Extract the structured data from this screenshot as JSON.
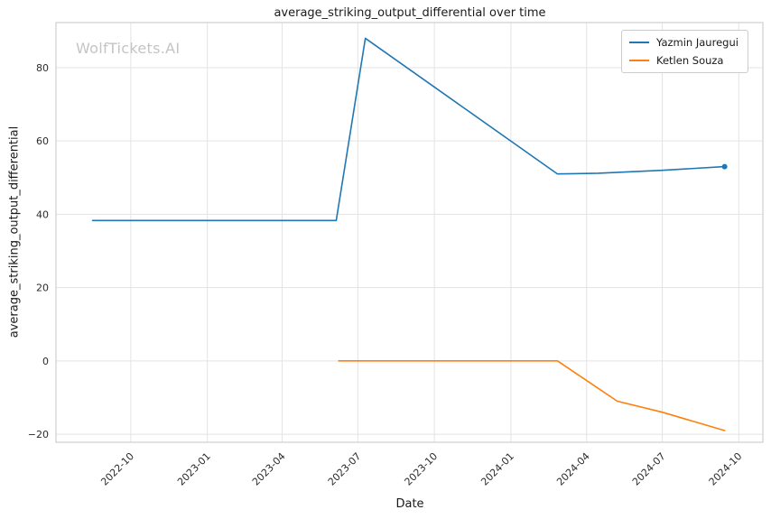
{
  "watermark": "WolfTickets.AI",
  "chart_data": {
    "type": "line",
    "title": "average_striking_output_differential over time",
    "xlabel": "Date",
    "ylabel": "average_striking_output_differential",
    "grid": true,
    "grid_color": "#e3e3e3",
    "spine_color": "#cfcfcf",
    "legend_position": "upper right",
    "xlim": [
      "2022-07-03",
      "2024-10-30"
    ],
    "ylim": [
      -22.2,
      92.3
    ],
    "x_ticks": [
      {
        "date": "2022-10-01",
        "label": "2022-10"
      },
      {
        "date": "2023-01-01",
        "label": "2023-01"
      },
      {
        "date": "2023-04-01",
        "label": "2023-04"
      },
      {
        "date": "2023-07-01",
        "label": "2023-07"
      },
      {
        "date": "2023-10-01",
        "label": "2023-10"
      },
      {
        "date": "2024-01-01",
        "label": "2024-01"
      },
      {
        "date": "2024-04-01",
        "label": "2024-04"
      },
      {
        "date": "2024-07-01",
        "label": "2024-07"
      },
      {
        "date": "2024-10-01",
        "label": "2024-10"
      }
    ],
    "y_ticks": [
      {
        "value": -20,
        "label": "−20"
      },
      {
        "value": 0,
        "label": "0"
      },
      {
        "value": 20,
        "label": "20"
      },
      {
        "value": 40,
        "label": "40"
      },
      {
        "value": 60,
        "label": "60"
      },
      {
        "value": 80,
        "label": "80"
      }
    ],
    "series": [
      {
        "name": "Yazmin Jauregui",
        "color": "#1f77b4",
        "end_marker": true,
        "x": [
          "2022-08-16",
          "2023-06-05",
          "2023-07-10",
          "2024-02-26",
          "2024-04-15",
          "2024-07-01",
          "2024-09-14"
        ],
        "y": [
          38.3,
          38.3,
          88,
          51,
          51.2,
          52,
          53
        ]
      },
      {
        "name": "Ketlen Souza",
        "color": "#ff7f0e",
        "end_marker": false,
        "x": [
          "2023-06-08",
          "2024-02-26",
          "2024-05-08",
          "2024-07-01",
          "2024-09-14"
        ],
        "y": [
          0,
          0,
          -11,
          -14,
          -19
        ]
      }
    ]
  }
}
